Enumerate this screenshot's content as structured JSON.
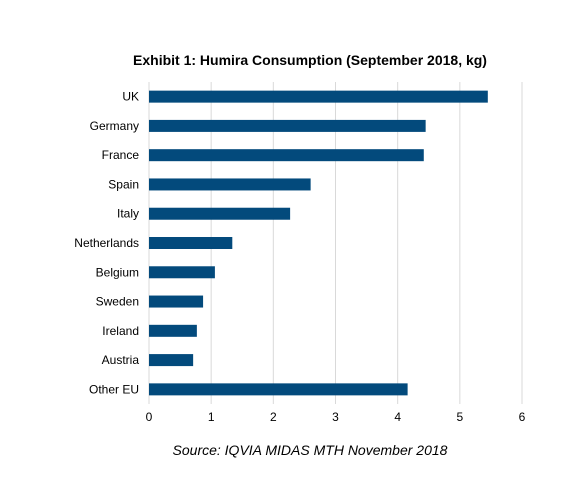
{
  "chart_data": {
    "type": "bar",
    "orientation": "horizontal",
    "title": "Exhibit 1: Humira Consumption (September 2018, kg)",
    "source": "Source: IQVIA MIDAS MTH November 2018",
    "categories": [
      "UK",
      "Germany",
      "France",
      "Spain",
      "Italy",
      "Netherlands",
      "Belgium",
      "Sweden",
      "Ireland",
      "Austria",
      "Other EU"
    ],
    "values": [
      5.45,
      4.45,
      4.42,
      2.6,
      2.27,
      1.34,
      1.06,
      0.87,
      0.77,
      0.71,
      4.16
    ],
    "xlim": [
      0,
      6
    ],
    "xticks": [
      "0",
      "1",
      "2",
      "3",
      "4",
      "5",
      "6"
    ],
    "xlabel": "",
    "ylabel": "",
    "grid": true,
    "legend": "none",
    "bar_color": "#034a7c",
    "grid_color": "#d9d9d9"
  }
}
